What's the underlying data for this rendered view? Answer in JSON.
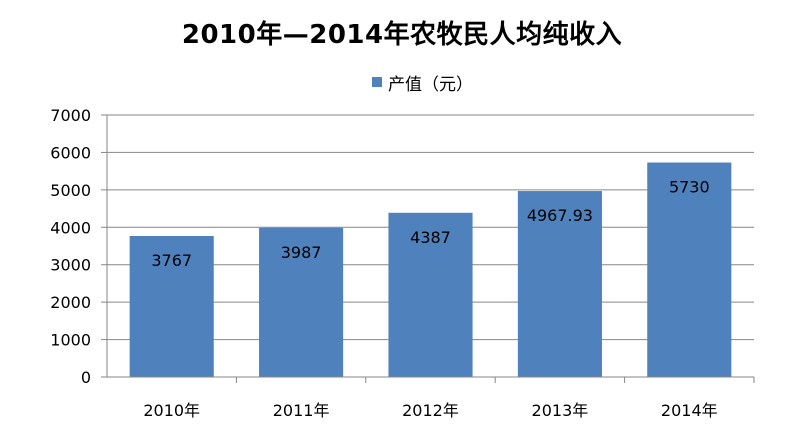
{
  "chart_data": {
    "type": "bar",
    "title": "2010年—2014年农牧民人均纯收入",
    "categories": [
      "2010年",
      "2011年",
      "2012年",
      "2013年",
      "2014年"
    ],
    "series": [
      {
        "name": "产值（元）",
        "values": [
          3767,
          3987,
          4387,
          4967.93,
          5730
        ],
        "data_labels": [
          "3767",
          "3987",
          "4387",
          "4967.93",
          "5730"
        ],
        "color": "#4f81bd"
      }
    ],
    "ylim": [
      0,
      7000
    ],
    "yticks": [
      "0",
      "1000",
      "2000",
      "3000",
      "4000",
      "5000",
      "6000",
      "7000"
    ],
    "grid": true,
    "legend": "top"
  }
}
